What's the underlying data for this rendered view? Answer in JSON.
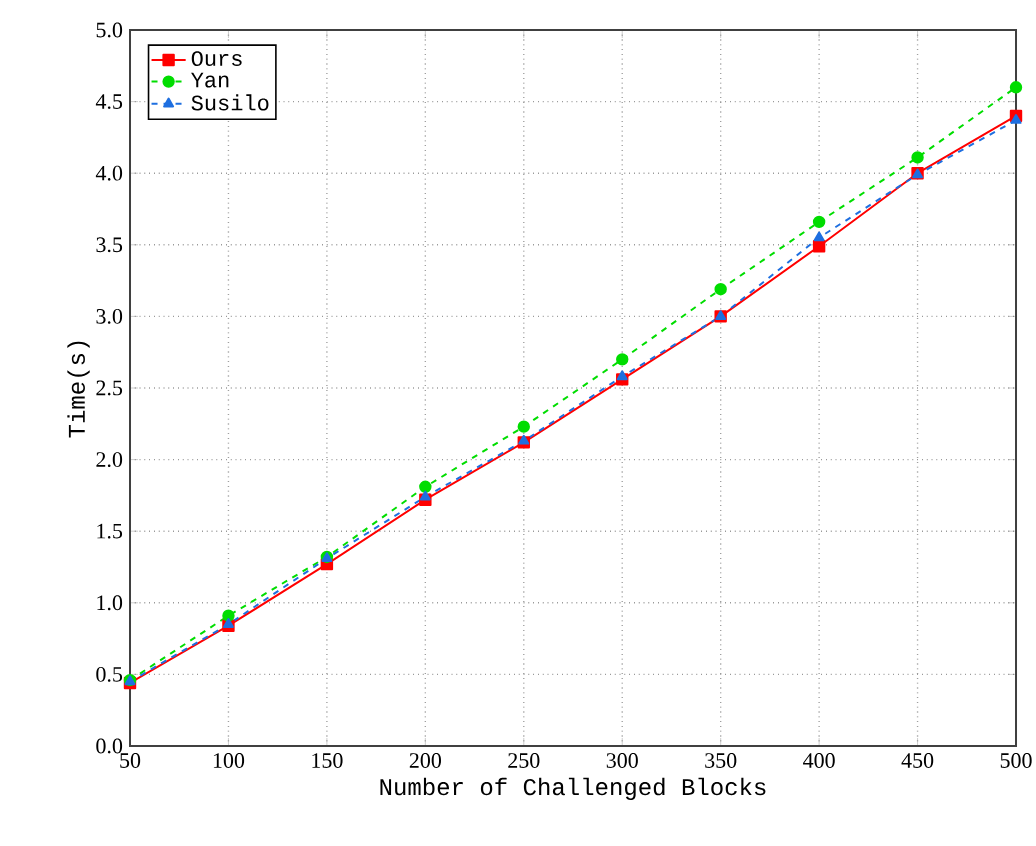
{
  "chart_data": {
    "type": "line",
    "xlabel": "Number of Challenged Blocks",
    "ylabel": "Time(s)",
    "x": [
      50,
      100,
      150,
      200,
      250,
      300,
      350,
      400,
      450,
      500
    ],
    "series": [
      {
        "name": "Ours",
        "color": "#ff0000",
        "marker": "square",
        "line_style": "solid",
        "values": [
          0.44,
          0.84,
          1.27,
          1.72,
          2.12,
          2.56,
          3.0,
          3.49,
          4.0,
          4.4
        ]
      },
      {
        "name": "Yan",
        "color": "#00dd00",
        "marker": "circle",
        "line_style": "dashed",
        "values": [
          0.46,
          0.91,
          1.32,
          1.81,
          2.23,
          2.7,
          3.19,
          3.66,
          4.11,
          4.6
        ]
      },
      {
        "name": "Susilo",
        "color": "#1e6fe0",
        "marker": "triangle",
        "line_style": "dashed",
        "values": [
          0.45,
          0.85,
          1.31,
          1.74,
          2.13,
          2.58,
          3.0,
          3.55,
          3.99,
          4.37
        ]
      }
    ],
    "xlim": [
      50,
      500
    ],
    "ylim": [
      0,
      5
    ],
    "xticks": [
      50,
      100,
      150,
      200,
      250,
      300,
      350,
      400,
      450,
      500
    ],
    "yticks": [
      {
        "value": 0,
        "label": "0.0"
      },
      {
        "value": 0.5,
        "label": "0.5"
      },
      {
        "value": 1,
        "label": "1.0"
      },
      {
        "value": 1.5,
        "label": "1.5"
      },
      {
        "value": 2,
        "label": "2.0"
      },
      {
        "value": 2.5,
        "label": "2.5"
      },
      {
        "value": 3,
        "label": "3.0"
      },
      {
        "value": 3.5,
        "label": "3.5"
      },
      {
        "value": 4,
        "label": "4.0"
      },
      {
        "value": 4.5,
        "label": "4.5"
      },
      {
        "value": 5,
        "label": "5.0"
      }
    ],
    "grid": true,
    "legend": "top left"
  }
}
